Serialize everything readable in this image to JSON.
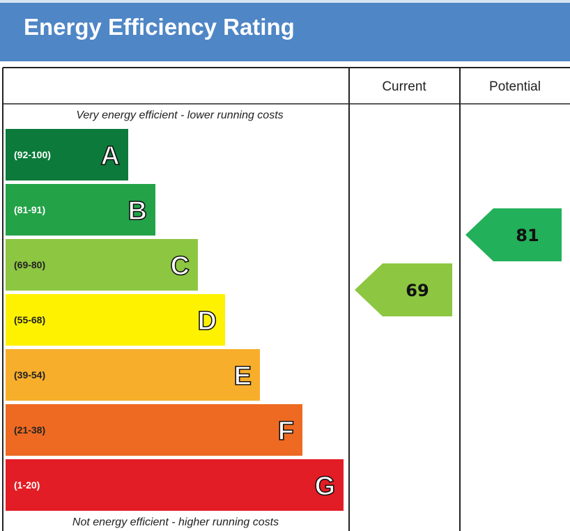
{
  "title": "Energy Efficiency Rating",
  "columns": {
    "current": "Current",
    "potential": "Potential"
  },
  "captions": {
    "top": "Very energy efficient - lower running costs",
    "bottom": "Not energy efficient - higher running costs"
  },
  "chart_data": {
    "type": "bar",
    "title": "Energy Efficiency Rating",
    "bands": [
      {
        "letter": "A",
        "range": "(92-100)",
        "min": 92,
        "max": 100,
        "color": "#0c7a3a",
        "range_text_color": "#ffffff"
      },
      {
        "letter": "B",
        "range": "(81-91)",
        "min": 81,
        "max": 91,
        "color": "#23a248",
        "range_text_color": "#ffffff"
      },
      {
        "letter": "C",
        "range": "(69-80)",
        "min": 69,
        "max": 80,
        "color": "#8dc641",
        "range_text_color": "#222222"
      },
      {
        "letter": "D",
        "range": "(55-68)",
        "min": 55,
        "max": 68,
        "color": "#fff200",
        "range_text_color": "#222222"
      },
      {
        "letter": "E",
        "range": "(39-54)",
        "min": 39,
        "max": 54,
        "color": "#f7ae2b",
        "range_text_color": "#222222"
      },
      {
        "letter": "F",
        "range": "(21-38)",
        "min": 21,
        "max": 38,
        "color": "#ee6a22",
        "range_text_color": "#222222"
      },
      {
        "letter": "G",
        "range": "(1-20)",
        "min": 1,
        "max": 20,
        "color": "#e31d25",
        "range_text_color": "#ffffff"
      }
    ],
    "current": {
      "value": "69",
      "band": "C",
      "color": "#8dc641"
    },
    "potential": {
      "value": "81",
      "band": "B",
      "color": "#23b05a"
    }
  }
}
